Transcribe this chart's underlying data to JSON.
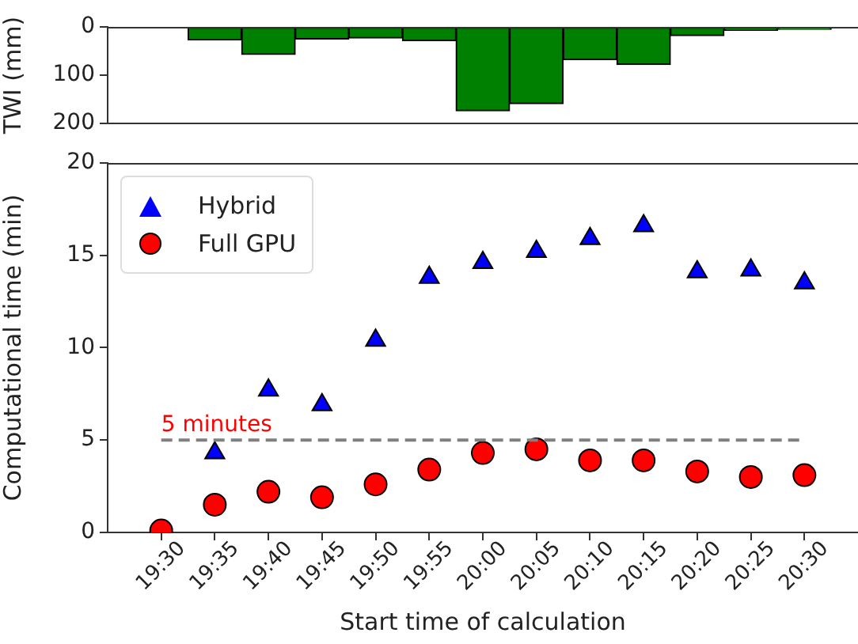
{
  "chart_data": [
    {
      "type": "bar",
      "ylabel": "TWI (mm)",
      "color": "#008000",
      "x": [
        19.5833,
        19.6667,
        19.75,
        19.8333,
        19.9167,
        20,
        20.0833,
        20.1667,
        20.25,
        20.3333,
        20.4167,
        20.5
      ],
      "values": [
        27,
        57,
        25,
        23,
        29,
        174,
        159,
        68,
        78,
        18,
        7,
        5
      ],
      "xlim": [
        19.4167,
        20.5833
      ],
      "ylim": [
        200,
        0
      ],
      "yticks": [
        0,
        100,
        200
      ],
      "tick_labels": "y",
      "grid": false,
      "legend": false
    },
    {
      "type": "scatter",
      "xlabel": "Start time of calculation",
      "ylabel": "Computational time (min)",
      "x": [
        19.5,
        19.5833,
        19.6667,
        19.75,
        19.8333,
        19.9167,
        20,
        20.0833,
        20.1667,
        20.25,
        20.3333,
        20.4167,
        20.5
      ],
      "series": [
        {
          "name": "Hybrid",
          "color": "#0000ff",
          "marker": "triangle",
          "values": [
            null,
            4.3,
            7.7,
            6.9,
            10.4,
            13.8,
            14.6,
            15.2,
            15.9,
            16.6,
            14.1,
            14.2,
            13.5
          ]
        },
        {
          "name": "Full GPU",
          "color": "#ff0000",
          "marker": "circle",
          "values": [
            0.1,
            1.5,
            2.2,
            1.9,
            2.6,
            3.4,
            4.3,
            4.5,
            3.9,
            3.9,
            3.3,
            3.0,
            3.1
          ]
        }
      ],
      "xlim": [
        19.4167,
        20.5833
      ],
      "xticks": [
        {
          "value": 19.5,
          "label": "19:30"
        },
        {
          "value": 19.5833,
          "label": "19:35"
        },
        {
          "value": 19.6667,
          "label": "19:40"
        },
        {
          "value": 19.75,
          "label": "19:45"
        },
        {
          "value": 19.8333,
          "label": "19:50"
        },
        {
          "value": 19.9167,
          "label": "19:55"
        },
        {
          "value": 20,
          "label": "20:00"
        },
        {
          "value": 20.0833,
          "label": "20:05"
        },
        {
          "value": 20.1667,
          "label": "20:10"
        },
        {
          "value": 20.25,
          "label": "20:15"
        },
        {
          "value": 20.3333,
          "label": "20:20"
        },
        {
          "value": 20.4167,
          "label": "20:25"
        },
        {
          "value": 20.5,
          "label": "20:30"
        }
      ],
      "ylim": [
        0,
        20
      ],
      "yticks": [
        0,
        5,
        10,
        15,
        20
      ],
      "ref_lines": [
        {
          "axis": "y",
          "value": 5,
          "label": "5 minutes",
          "color": "#808080",
          "line_style": "dashed"
        }
      ],
      "grid": false,
      "legend": "top left"
    }
  ]
}
